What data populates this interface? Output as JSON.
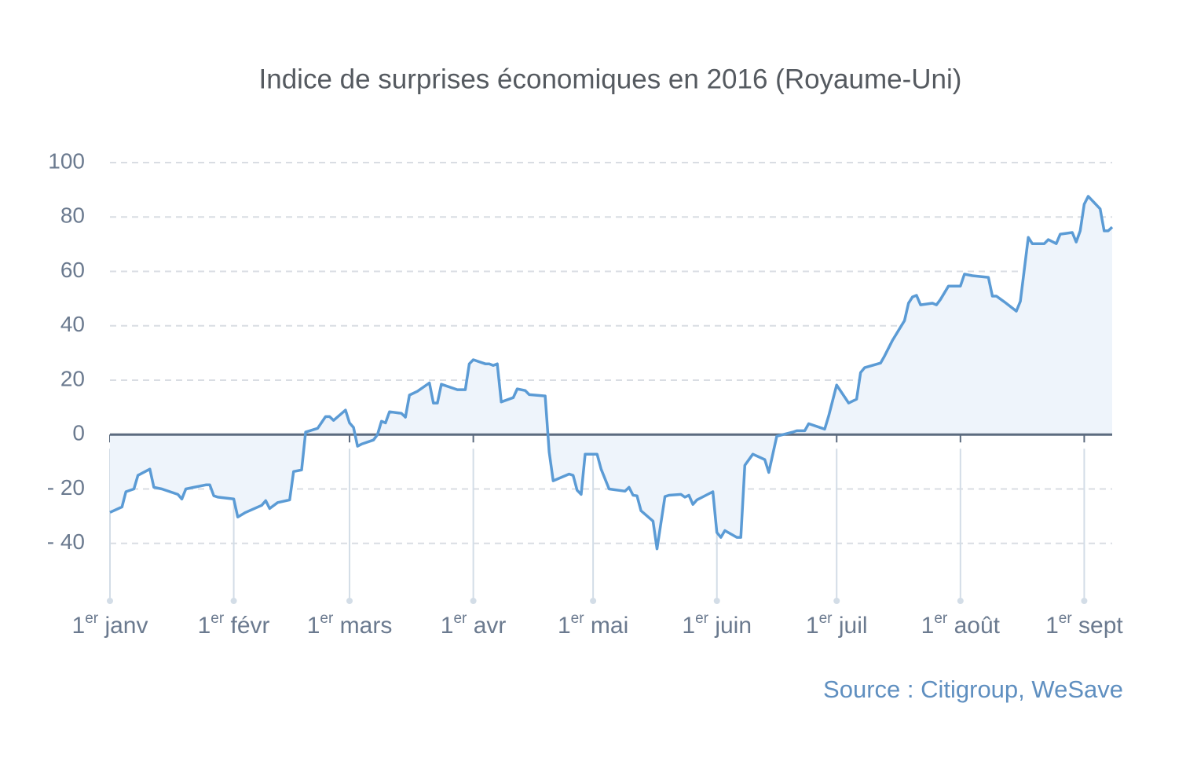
{
  "chart_data": {
    "type": "area",
    "title": "Indice de surprises économiques en 2016 (Royaume-Uni)",
    "source": "Source : Citigroup, WeSave",
    "ylim": [
      -60,
      100
    ],
    "yticks": [
      100,
      80,
      60,
      40,
      20,
      0,
      {
        "value": -20,
        "label": "- 20"
      },
      {
        "value": -40,
        "label": "- 40"
      }
    ],
    "grid": true,
    "xlim": [
      "01-01",
      "09-08"
    ],
    "xticks": [
      {
        "value": "01-01",
        "label": "1er janv"
      },
      {
        "value": "02-01",
        "label": "1er févr"
      },
      {
        "value": "03-01",
        "label": "1er mars"
      },
      {
        "value": "04-01",
        "label": "1er avr"
      },
      {
        "value": "05-01",
        "label": "1er mai"
      },
      {
        "value": "06-01",
        "label": "1er juin"
      },
      {
        "value": "07-01",
        "label": "1er juil"
      },
      {
        "value": "08-01",
        "label": "1er août"
      },
      {
        "value": "09-01",
        "label": "1er sept"
      }
    ],
    "series": [
      {
        "color": "#5b9bd5",
        "fill": "#eef4fb",
        "x": [
          "01-01",
          "01-04",
          "01-05",
          "01-07",
          "01-08",
          "01-11",
          "01-12",
          "01-14",
          "01-18",
          "01-19",
          "01-20",
          "01-22",
          "01-25",
          "01-26",
          "01-27",
          "01-28",
          "02-01",
          "02-02",
          "02-04",
          "02-08",
          "02-09",
          "02-10",
          "02-12",
          "02-15",
          "02-16",
          "02-18",
          "02-19",
          "02-22",
          "02-24",
          "02-25",
          "02-26",
          "02-29",
          "03-01",
          "03-02",
          "03-03",
          "03-04",
          "03-07",
          "03-08",
          "03-09",
          "03-10",
          "03-11",
          "03-14",
          "03-15",
          "03-16",
          "03-18",
          "03-21",
          "03-22",
          "03-23",
          "03-24",
          "03-28",
          "03-30",
          "03-31",
          "04-01",
          "04-04",
          "04-05",
          "04-06",
          "04-07",
          "04-08",
          "04-11",
          "04-12",
          "04-14",
          "04-15",
          "04-19",
          "04-20",
          "04-21",
          "04-25",
          "04-26",
          "04-27",
          "04-28",
          "04-29",
          "05-02",
          "05-03",
          "05-05",
          "05-09",
          "05-10",
          "05-11",
          "05-12",
          "05-13",
          "05-16",
          "05-17",
          "05-19",
          "05-20",
          "05-23",
          "05-24",
          "05-25",
          "05-26",
          "05-27",
          "05-31",
          "06-01",
          "06-02",
          "06-03",
          "06-06",
          "06-07",
          "06-08",
          "06-10",
          "06-13",
          "06-14",
          "06-15",
          "06-16",
          "06-20",
          "06-21",
          "06-23",
          "06-24",
          "06-28",
          "06-29",
          "07-01",
          "07-04",
          "07-06",
          "07-07",
          "07-08",
          "07-12",
          "07-13",
          "07-15",
          "07-18",
          "07-19",
          "07-20",
          "07-21",
          "07-22",
          "07-25",
          "07-26",
          "07-27",
          "07-29",
          "08-01",
          "08-02",
          "08-04",
          "08-08",
          "08-09",
          "08-10",
          "08-12",
          "08-15",
          "08-16",
          "08-18",
          "08-19",
          "08-22",
          "08-23",
          "08-25",
          "08-26",
          "08-29",
          "08-30",
          "08-31",
          "09-01",
          "09-02",
          "09-05",
          "09-06",
          "09-07",
          "09-08"
        ],
        "values": [
          -28.6,
          -26.6,
          -21,
          -20,
          -15,
          -12.7,
          -19.4,
          -20,
          -22,
          -23.7,
          -20,
          -19.4,
          -18.5,
          -18.5,
          -22.5,
          -23,
          -23.7,
          -30.3,
          -28.6,
          -26,
          -24.3,
          -27.2,
          -25,
          -24,
          -13.6,
          -13,
          0.9,
          2.3,
          6.6,
          6.6,
          5.2,
          9,
          4.3,
          2.6,
          -4.3,
          -3.5,
          -2,
          0,
          4.9,
          4.3,
          8.4,
          7.8,
          6.4,
          14.5,
          15.9,
          19,
          11.6,
          11.6,
          18.5,
          16.5,
          16.5,
          26,
          27.5,
          26,
          26,
          25.4,
          26,
          12,
          13.6,
          16.8,
          16.2,
          14.7,
          14.2,
          -6.4,
          -17,
          -14.5,
          -15,
          -20.5,
          -22,
          -7.2,
          -7.2,
          -12.7,
          -20,
          -20.8,
          -19.4,
          -22.3,
          -22.5,
          -28,
          -31.8,
          -42,
          -22.8,
          -22.3,
          -22,
          -23,
          -22.3,
          -25.7,
          -24,
          -21,
          -36,
          -37.8,
          -35.3,
          -37.8,
          -37.8,
          -11.3,
          -7.2,
          -9.2,
          -13.9,
          -7.2,
          -0.6,
          0.9,
          1.4,
          1.4,
          4,
          2,
          6.9,
          18.2,
          11.6,
          13,
          22.8,
          24.6,
          26.3,
          28.9,
          34.7,
          41.9,
          48.3,
          50.6,
          51.2,
          47.7,
          48.3,
          47.7,
          49.7,
          54.6,
          54.6,
          59,
          58.4,
          57.8,
          50.9,
          50.9,
          48.8,
          45.4,
          49,
          72.5,
          70.2,
          70.2,
          71.7,
          70.2,
          73.7,
          74.3,
          70.8,
          74.9,
          84.7,
          87.6,
          83,
          74.9,
          74.9,
          76.3
        ]
      }
    ]
  }
}
